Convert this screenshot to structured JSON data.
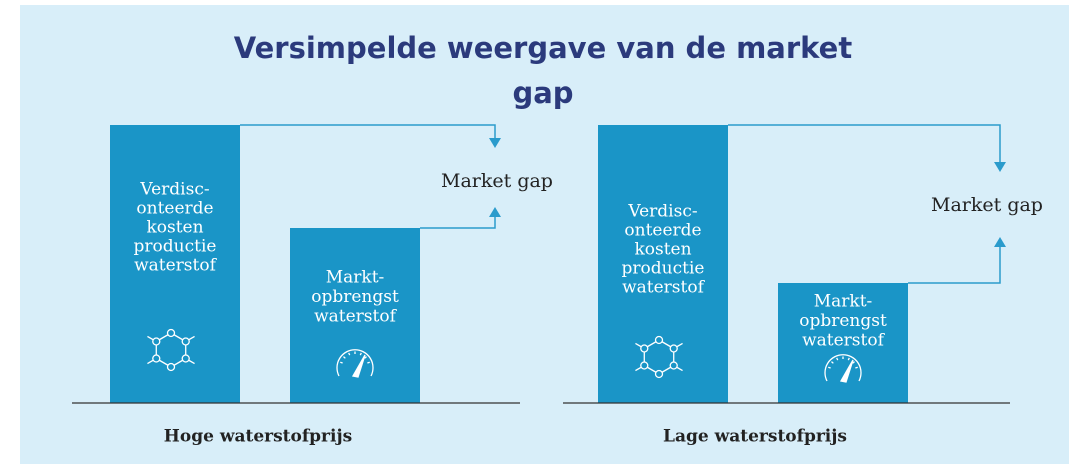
{
  "title": [
    "Versimpelde weergave van de market",
    "gap"
  ],
  "panels": [
    {
      "caption": "Hoge waterstofprijs",
      "cost_label": [
        "Verdisc-",
        "onteerde",
        "kosten",
        "productie",
        "waterstof"
      ],
      "revenue_label": [
        "Markt-",
        "opbrengst",
        "waterstof"
      ],
      "gap_label": "Market gap"
    },
    {
      "caption": "Lage waterstofprijs",
      "cost_label": [
        "Verdisc-",
        "onteerde",
        "kosten",
        "productie",
        "waterstof"
      ],
      "revenue_label": [
        "Markt-",
        "opbrengst",
        "waterstof"
      ],
      "gap_label": "Market gap"
    }
  ]
}
